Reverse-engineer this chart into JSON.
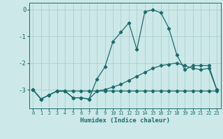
{
  "xlabel": "Humidex (Indice chaleur)",
  "background_color": "#cce8e8",
  "grid_color": "#aacfcf",
  "line_color": "#1a6b6b",
  "x": [
    0,
    1,
    2,
    3,
    4,
    5,
    6,
    7,
    8,
    9,
    10,
    11,
    12,
    13,
    14,
    15,
    16,
    17,
    18,
    19,
    20,
    21,
    22,
    23
  ],
  "line1": [
    -3.0,
    -3.35,
    -3.2,
    -3.05,
    -3.05,
    -3.05,
    -3.05,
    -3.05,
    -3.05,
    -3.05,
    -3.05,
    -3.05,
    -3.05,
    -3.05,
    -3.05,
    -3.05,
    -3.05,
    -3.05,
    -3.05,
    -3.05,
    -3.05,
    -3.05,
    -3.05,
    -3.05
  ],
  "line2": [
    -3.0,
    -3.35,
    -3.2,
    -3.05,
    -3.05,
    -3.3,
    -3.3,
    -3.35,
    -2.6,
    -2.15,
    -1.2,
    -0.85,
    -0.5,
    -1.5,
    -0.08,
    -0.02,
    -0.12,
    -0.7,
    -1.7,
    -2.25,
    -2.1,
    -2.1,
    -2.1,
    -3.0
  ],
  "line3": [
    -3.0,
    -3.35,
    -3.2,
    -3.05,
    -3.05,
    -3.3,
    -3.3,
    -3.35,
    -3.05,
    -3.0,
    -2.9,
    -2.8,
    -2.65,
    -2.5,
    -2.35,
    -2.2,
    -2.1,
    -2.05,
    -2.0,
    -2.1,
    -2.2,
    -2.25,
    -2.2,
    -3.0
  ],
  "ylim": [
    -3.7,
    0.25
  ],
  "yticks": [
    0,
    -1,
    -2,
    -3
  ],
  "xlim": [
    -0.5,
    23.5
  ],
  "figsize": [
    3.2,
    2.0
  ],
  "dpi": 100
}
